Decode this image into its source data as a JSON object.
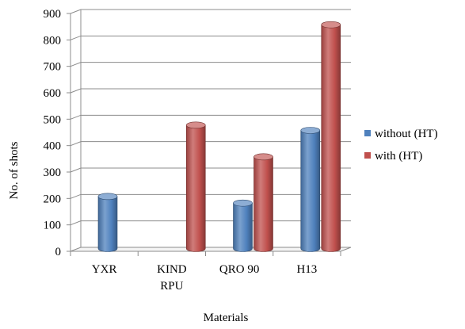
{
  "chart_data": {
    "type": "bar",
    "title": "",
    "xlabel": "Materials",
    "ylabel": "No. of shots",
    "ylim": [
      0,
      900
    ],
    "y_ticks": [
      0,
      100,
      200,
      300,
      400,
      500,
      600,
      700,
      800,
      900
    ],
    "grid": "horizontal",
    "legend_position": "right",
    "categories": [
      [
        "YXR"
      ],
      [
        "KIND",
        "RPU"
      ],
      [
        "QRO 90"
      ],
      [
        "H13"
      ]
    ],
    "series": [
      {
        "name": "without (HT)",
        "color": "#4f81bd",
        "values": [
          200,
          null,
          175,
          450
        ]
      },
      {
        "name": "with (HT)",
        "color": "#c0504d",
        "values": [
          null,
          470,
          350,
          850
        ]
      }
    ]
  }
}
